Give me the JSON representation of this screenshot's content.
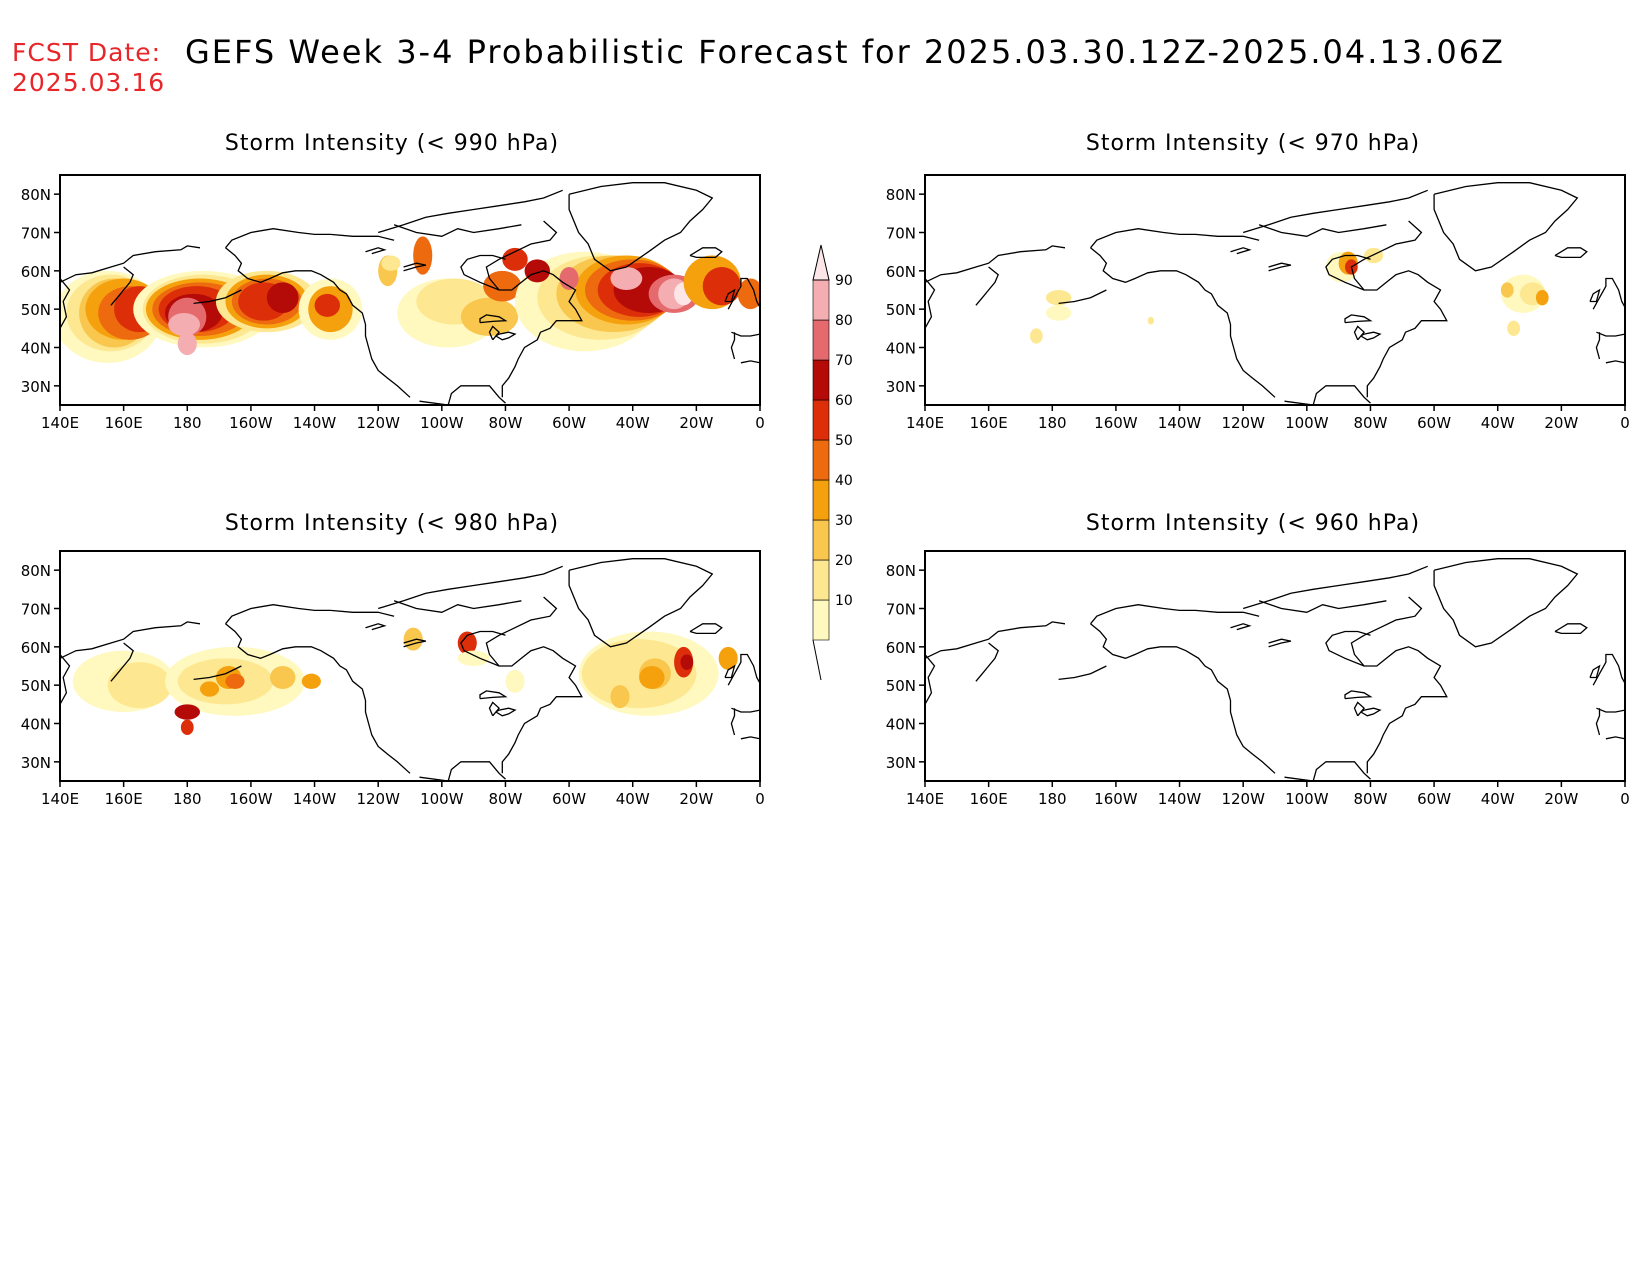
{
  "header": {
    "fcst_label": "FCST Date:",
    "fcst_date": "2025.03.16",
    "title": "GEFS Week 3-4 Probabilistic Forecast for 2025.03.30.12Z-2025.04.13.06Z"
  },
  "panels": [
    {
      "id": "p990",
      "title": "Storm Intensity (< 990 hPa)"
    },
    {
      "id": "p970",
      "title": "Storm Intensity (< 970 hPa)"
    },
    {
      "id": "p980",
      "title": "Storm Intensity (< 980 hPa)"
    },
    {
      "id": "p960",
      "title": "Storm Intensity (< 960 hPa)"
    }
  ],
  "axes": {
    "lon_labels": [
      "140E",
      "160E",
      "180",
      "160W",
      "140W",
      "120W",
      "100W",
      "80W",
      "60W",
      "40W",
      "20W",
      "0"
    ],
    "lat_labels": [
      "80N",
      "70N",
      "60N",
      "50N",
      "40N",
      "30N"
    ],
    "lon_range": [
      140,
      360
    ],
    "lat_range": [
      25,
      85
    ]
  },
  "colorbar": {
    "levels": [
      10,
      20,
      30,
      40,
      50,
      60,
      70,
      80,
      90
    ],
    "labels": [
      "10",
      "20",
      "30",
      "40",
      "50",
      "60",
      "70",
      "80",
      "90"
    ],
    "colors": [
      "#fff8bf",
      "#fde891",
      "#f9c64e",
      "#f5a10e",
      "#ee6a0f",
      "#dc2e08",
      "#b40a08",
      "#e56a6e",
      "#f4aeb1",
      "#fde6e8"
    ]
  },
  "colors": {
    "fcst": "#e8262a",
    "coast": "#000000"
  }
}
